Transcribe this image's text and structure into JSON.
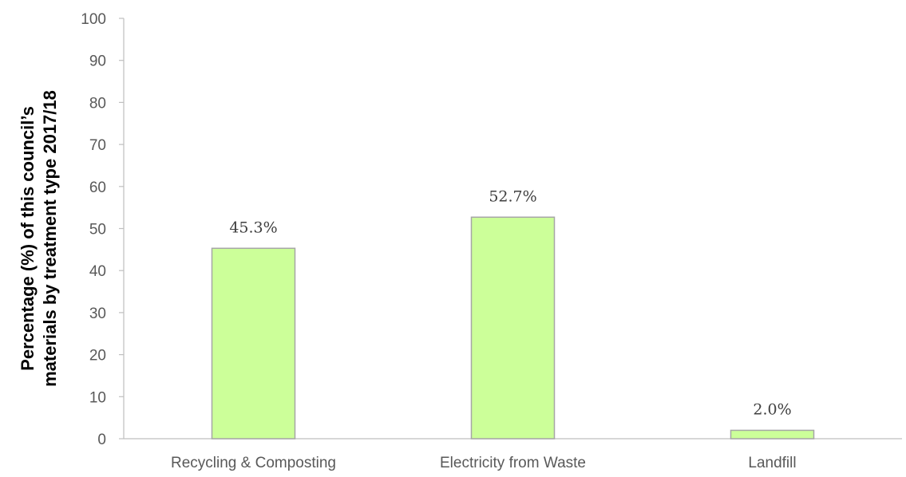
{
  "chart_data": {
    "type": "bar",
    "categories": [
      "Recycling & Composting",
      "Electricity from Waste",
      "Landfill"
    ],
    "values": [
      45.3,
      52.7,
      2.0
    ],
    "data_labels": [
      "45.3%",
      "52.7%",
      "2.0%"
    ],
    "title": "",
    "xlabel": "",
    "ylabel_lines": [
      "Percentage (%) of this council’s",
      "materials by treatment type 2017/18"
    ],
    "ylim": [
      0,
      100
    ],
    "yticks": [
      "0",
      "10",
      "20",
      "30",
      "40",
      "50",
      "60",
      "70",
      "80",
      "90",
      "100"
    ],
    "grid": false,
    "legend": "none",
    "bar_color": "#ccff99",
    "bar_border_color": "#a6a6a6",
    "axis_color": "#bfbfbf"
  }
}
